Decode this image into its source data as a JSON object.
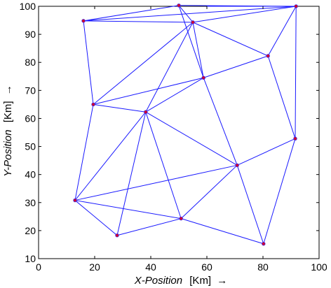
{
  "chart_data": {
    "type": "scatter",
    "title": "",
    "xlabel": {
      "italic_part": "X-Position",
      "unit_part": "[Km]",
      "arrow": "→"
    },
    "ylabel": {
      "italic_part": "Y-Position",
      "unit_part": "[Km]",
      "arrow": "→"
    },
    "xlim": [
      0,
      100
    ],
    "ylim": [
      10,
      100
    ],
    "xticks": [
      0,
      20,
      40,
      60,
      80,
      100
    ],
    "yticks": [
      10,
      20,
      30,
      40,
      50,
      60,
      70,
      80,
      90,
      100
    ],
    "xtick_labels": [
      "0",
      "20",
      "40",
      "60",
      "80",
      "100"
    ],
    "ytick_labels": [
      "10",
      "20",
      "30",
      "40",
      "50",
      "60",
      "70",
      "80",
      "90",
      "100"
    ],
    "grid": false,
    "legend": "none",
    "node_color": "#cc0033",
    "edge_color": "#1a1aff",
    "nodes": [
      {
        "x": 16,
        "y": 94.8
      },
      {
        "x": 50,
        "y": 100.3
      },
      {
        "x": 55,
        "y": 94.3
      },
      {
        "x": 91.8,
        "y": 100
      },
      {
        "x": 81.8,
        "y": 82.3
      },
      {
        "x": 58.8,
        "y": 74.5
      },
      {
        "x": 19.5,
        "y": 65
      },
      {
        "x": 38.2,
        "y": 62.3
      },
      {
        "x": 91.5,
        "y": 52.8
      },
      {
        "x": 70.8,
        "y": 43.3
      },
      {
        "x": 13,
        "y": 30.8
      },
      {
        "x": 50.8,
        "y": 24.3
      },
      {
        "x": 28,
        "y": 18.3
      },
      {
        "x": 80.2,
        "y": 15.3
      }
    ],
    "edges": [
      [
        0,
        1
      ],
      [
        0,
        3
      ],
      [
        0,
        6
      ],
      [
        0,
        2
      ],
      [
        1,
        2
      ],
      [
        1,
        5
      ],
      [
        1,
        3
      ],
      [
        2,
        6
      ],
      [
        2,
        7
      ],
      [
        2,
        5
      ],
      [
        2,
        4
      ],
      [
        2,
        3
      ],
      [
        3,
        4
      ],
      [
        3,
        8
      ],
      [
        4,
        5
      ],
      [
        4,
        8
      ],
      [
        5,
        6
      ],
      [
        5,
        7
      ],
      [
        5,
        9
      ],
      [
        6,
        7
      ],
      [
        6,
        10
      ],
      [
        7,
        10
      ],
      [
        7,
        12
      ],
      [
        7,
        11
      ],
      [
        7,
        9
      ],
      [
        8,
        9
      ],
      [
        8,
        13
      ],
      [
        9,
        10
      ],
      [
        9,
        11
      ],
      [
        9,
        13
      ],
      [
        10,
        12
      ],
      [
        10,
        11
      ],
      [
        11,
        12
      ],
      [
        11,
        13
      ]
    ],
    "extra_segments": [
      {
        "x1": 60,
        "y1": 100,
        "x2": 91.8,
        "y2": 100
      }
    ]
  }
}
